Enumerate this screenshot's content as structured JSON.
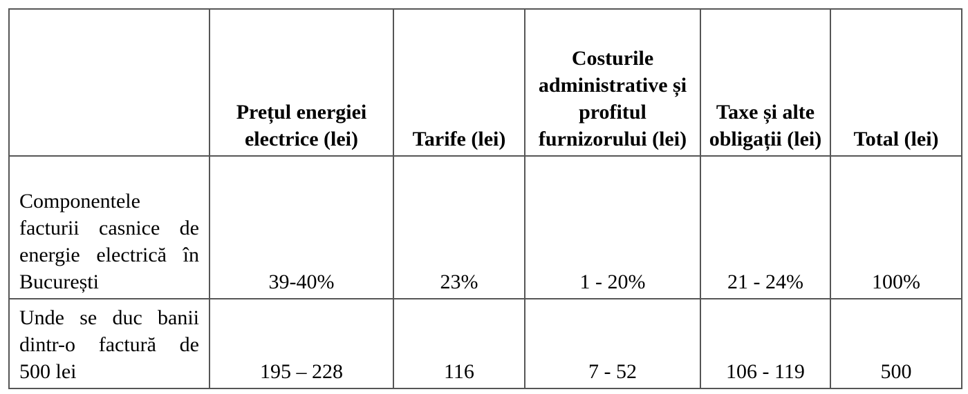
{
  "table": {
    "headers": [
      "Prețul energiei electrice (lei)",
      "Tarife (lei)",
      "Costurile administrative și profitul furnizorului (lei)",
      "Taxe și alte obligații (lei)",
      "Total (lei)"
    ],
    "rows": [
      {
        "label": "Componentele facturii casnice de energie electrică în București",
        "cells": [
          "39-40%",
          "23%",
          "1 - 20%",
          "21 - 24%",
          "100%"
        ]
      },
      {
        "label": "Unde se duc banii dintr-o factură de 500 lei",
        "cells": [
          "195 – 228",
          "116",
          "7 - 52",
          "106 - 119",
          "500"
        ]
      }
    ]
  }
}
